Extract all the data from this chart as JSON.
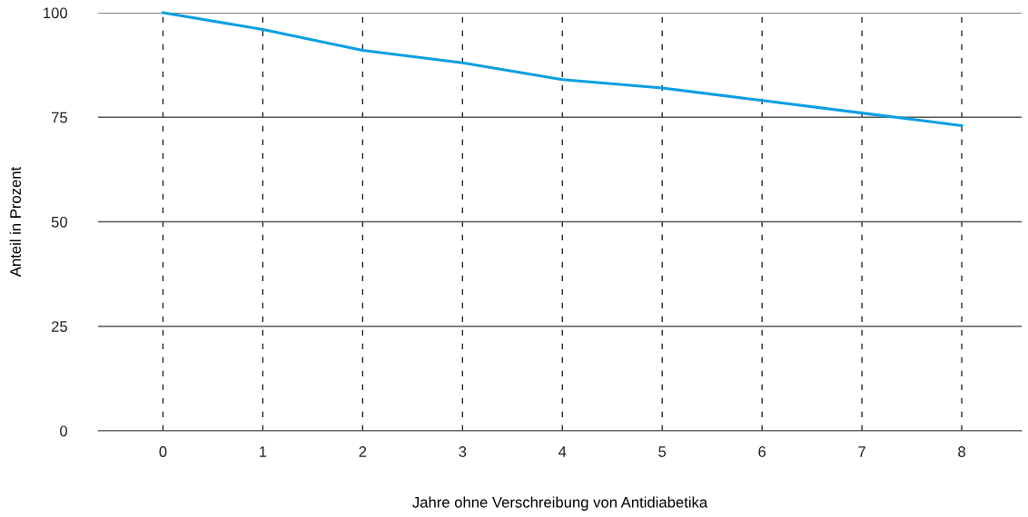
{
  "chart_data": {
    "type": "line",
    "xlabel": "Jahre ohne Verschreibung von Antidiabetika",
    "ylabel": "Anteil in Prozent",
    "x": [
      0,
      1,
      2,
      3,
      4,
      5,
      6,
      7,
      8
    ],
    "series": [
      {
        "color": "#0a9fe3",
        "values": [
          100,
          96,
          91,
          88,
          84,
          82,
          79,
          76,
          73
        ]
      }
    ],
    "xlim": [
      -0.65,
      8.6
    ],
    "xticks": [
      0,
      1,
      2,
      3,
      4,
      5,
      6,
      7,
      8
    ],
    "ylim": [
      0,
      100
    ],
    "yticks": [
      0,
      25,
      50,
      75,
      100
    ],
    "grid": true,
    "marker": "none",
    "line_style": "solid"
  }
}
